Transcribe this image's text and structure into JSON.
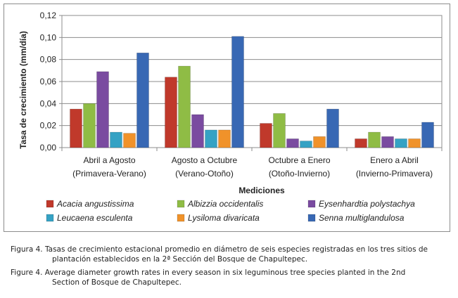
{
  "chart_data": {
    "type": "bar",
    "categories": [
      [
        "Abril a Agosto",
        "(Primavera-Verano)"
      ],
      [
        "Agosto a Octubre",
        "(Verano-Otoño)"
      ],
      [
        "Octubre a Enero",
        "(Otoño-Invierno)"
      ],
      [
        "Enero a Abril",
        "(Invierno-Primavera)"
      ]
    ],
    "series": [
      {
        "name": "Acacia angustissima",
        "color": "#c0392b",
        "values": [
          0.035,
          0.064,
          0.022,
          0.008
        ]
      },
      {
        "name": "Albizzia occidentalis",
        "color": "#8fbc45",
        "values": [
          0.04,
          0.074,
          0.031,
          0.014
        ]
      },
      {
        "name": "Eysenhardtia polystachya",
        "color": "#7a4ba0",
        "values": [
          0.069,
          0.03,
          0.008,
          0.01
        ]
      },
      {
        "name": "Leucaena esculenta",
        "color": "#35a2c4",
        "values": [
          0.014,
          0.016,
          0.006,
          0.008
        ]
      },
      {
        "name": "Lysiloma divaricata",
        "color": "#f0922a",
        "values": [
          0.013,
          0.016,
          0.01,
          0.008
        ]
      },
      {
        "name": "Senna multiglandulosa",
        "color": "#3868b4",
        "values": [
          0.086,
          0.101,
          0.035,
          0.023
        ]
      }
    ],
    "ylabel": "Tasa de crecimiento (mm/día)",
    "xlabel": "Mediciones",
    "ylim": [
      0,
      0.12
    ],
    "yticks": [
      "0,00",
      "0,02",
      "0,04",
      "0,06",
      "0,08",
      "0,10",
      "0,12"
    ],
    "grid": true,
    "legend_position": "bottom"
  },
  "caption": {
    "es_line1": "Figura 4. Tasas de crecimiento estacional promedio en diámetro de seis especies registradas en los tres sitios de",
    "es_line2": "plantación establecidos en la 2ª Sección del Bosque de Chapultepec.",
    "en_line1": "Figure 4. Average diameter growth rates in every season in six leguminous tree species planted in the 2nd",
    "en_line2": "Section of Bosque de Chapultepec."
  }
}
